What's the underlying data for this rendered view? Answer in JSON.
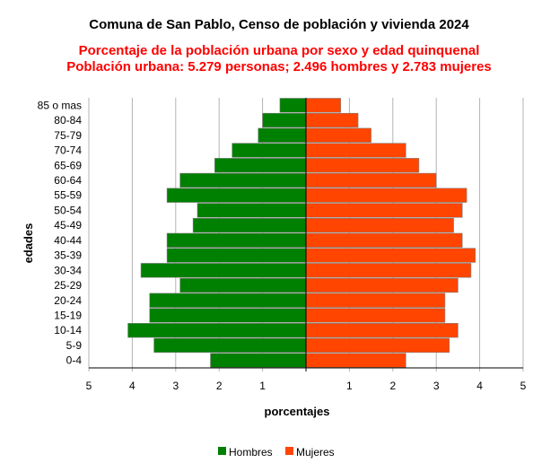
{
  "chart_data": {
    "type": "bar",
    "orientation": "horizontal",
    "title": "Comuna de San Pablo, Censo de población y vivienda 2024",
    "subtitle_lines": [
      "Porcentaje de la población urbana por sexo y edad quinquenal",
      "Población urbana: 5.279 personas; 2.496 hombres y 2.783 mujeres"
    ],
    "xlabel": "porcentajes",
    "ylabel": "edades",
    "xlim": [
      -5,
      5
    ],
    "x_ticks": [
      -5,
      -4,
      -3,
      -2,
      -1,
      1,
      2,
      3,
      4,
      5
    ],
    "x_tick_labels": [
      "5",
      "4",
      "3",
      "2",
      "1",
      "1",
      "2",
      "3",
      "4",
      "5"
    ],
    "grid": "vertical",
    "legend": "bottom",
    "categories": [
      "85 o mas",
      "80-84",
      "75-79",
      "70-74",
      "65-69",
      "60-64",
      "55-59",
      "50-54",
      "45-49",
      "40-44",
      "35-39",
      "30-34",
      "25-29",
      "20-24",
      "15-19",
      "10-14",
      "5-9",
      "0-4"
    ],
    "series": [
      {
        "name": "Hombres",
        "color": "#008000",
        "side": "left",
        "values": [
          0.6,
          1.0,
          1.1,
          1.7,
          2.1,
          2.9,
          3.2,
          2.5,
          2.6,
          3.2,
          3.2,
          3.8,
          2.9,
          3.6,
          3.6,
          4.1,
          3.5,
          2.2
        ]
      },
      {
        "name": "Mujeres",
        "color": "#ff4500",
        "side": "right",
        "values": [
          0.8,
          1.2,
          1.5,
          2.3,
          2.6,
          3.0,
          3.7,
          3.6,
          3.4,
          3.6,
          3.9,
          3.8,
          3.5,
          3.2,
          3.2,
          3.5,
          3.3,
          2.3
        ]
      }
    ]
  }
}
